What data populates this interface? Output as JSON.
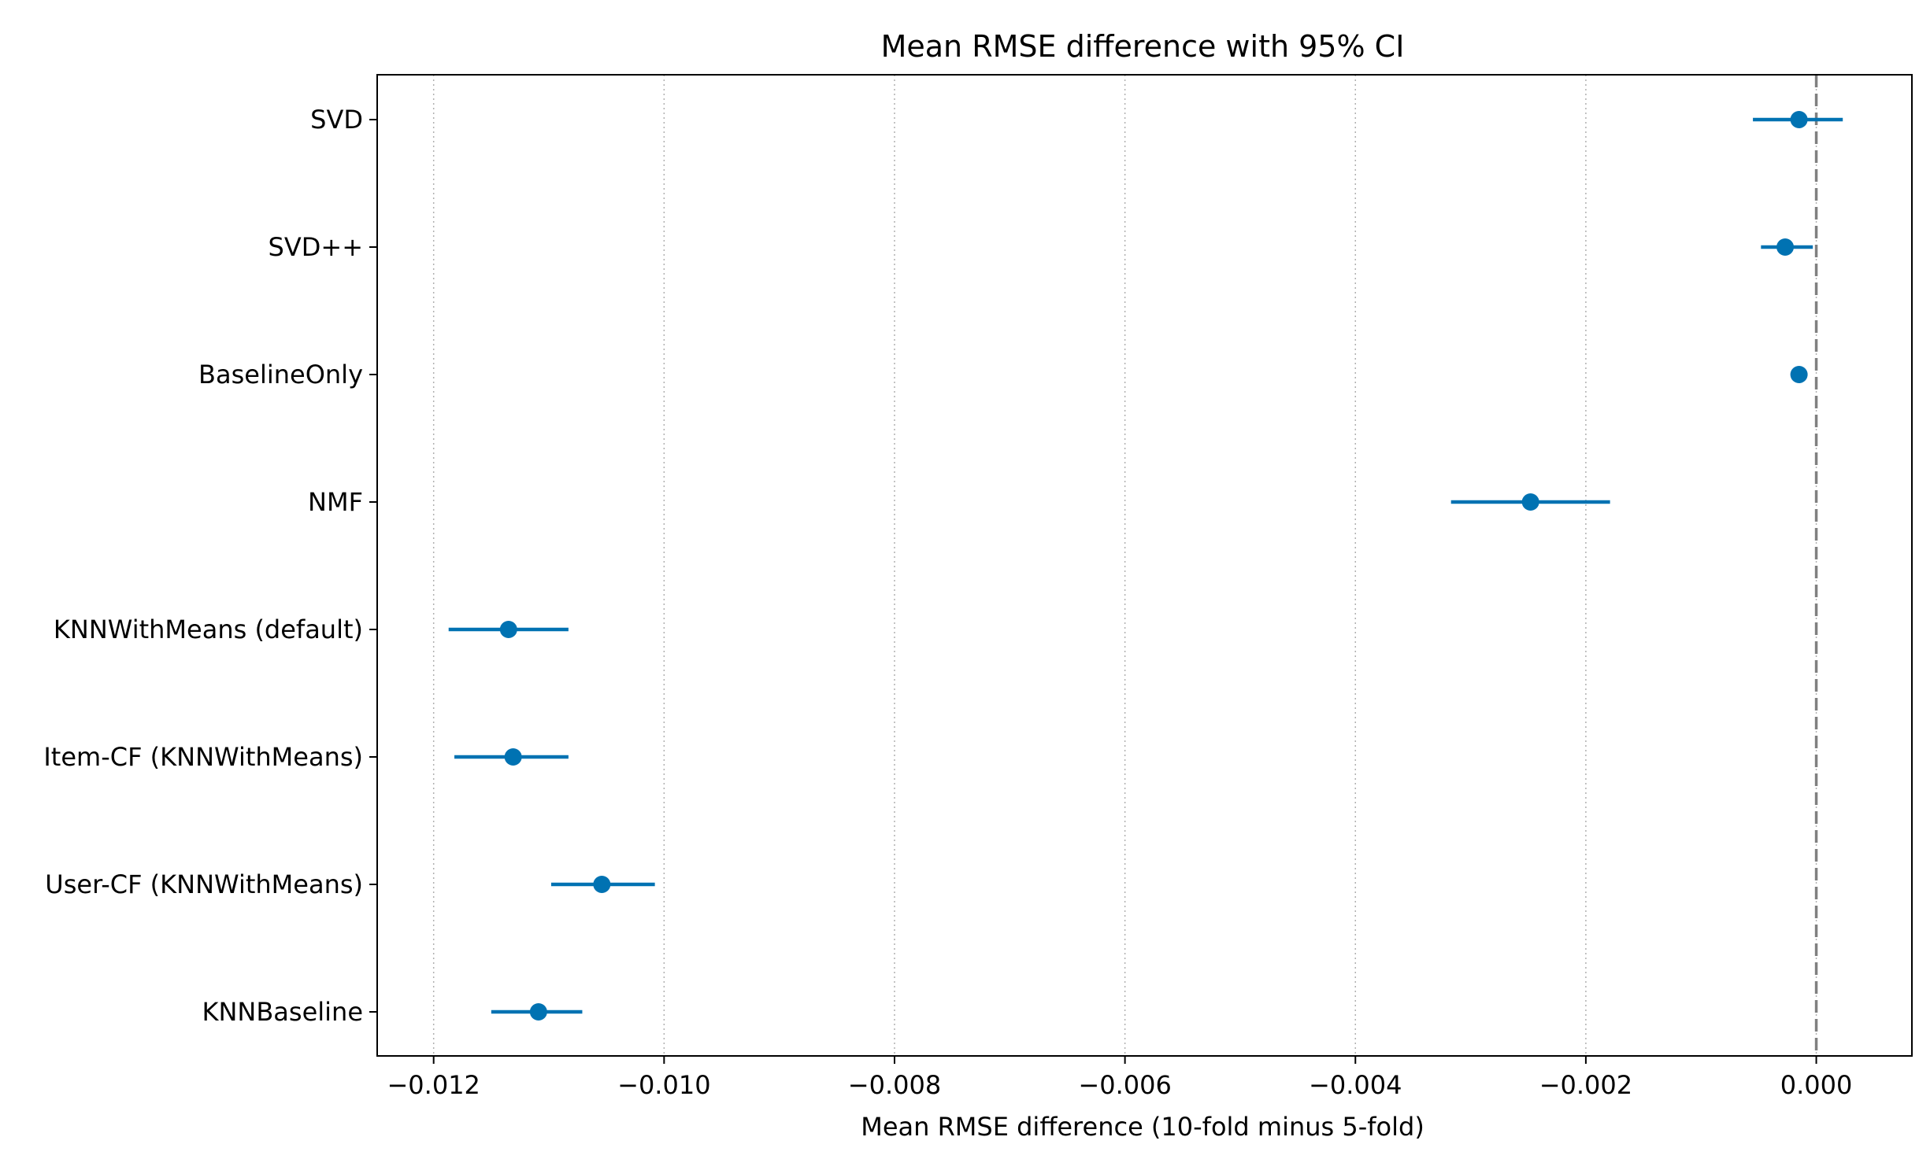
{
  "chart_data": {
    "type": "scatter",
    "title": "Mean RMSE difference with 95% CI",
    "xlabel": "Mean RMSE difference (10-fold minus 5-fold)",
    "ylabel": "",
    "xlim": [
      -0.01249,
      0.00083
    ],
    "xticks": [
      -0.012,
      -0.01,
      -0.008,
      -0.006,
      -0.004,
      -0.002,
      0.0
    ],
    "xtick_labels": [
      "−0.012",
      "−0.010",
      "−0.008",
      "−0.006",
      "−0.004",
      "−0.002",
      "0.000"
    ],
    "grid": "x-dotted",
    "reference_line": {
      "x": 0.0,
      "style": "dashed",
      "color": "#808080"
    },
    "marker_color": "#0072B2",
    "categories": [
      "SVD",
      "SVD++",
      "BaselineOnly",
      "NMF",
      "KNNWithMeans (default)",
      "Item-CF (KNNWithMeans)",
      "User-CF (KNNWithMeans)",
      "KNNBaseline"
    ],
    "series": [
      {
        "name": "Mean RMSE difference",
        "values": [
          -0.00015,
          -0.00027,
          -0.00015,
          -0.00248,
          -0.01135,
          -0.01131,
          -0.01054,
          -0.01109
        ],
        "ci_low": [
          -0.00055,
          -0.00048,
          -0.00017,
          -0.00317,
          -0.01187,
          -0.01182,
          -0.01098,
          -0.0115
        ],
        "ci_high": [
          0.00023,
          -3e-05,
          -0.00013,
          -0.00179,
          -0.01083,
          -0.01083,
          -0.01008,
          -0.01071
        ]
      }
    ]
  }
}
